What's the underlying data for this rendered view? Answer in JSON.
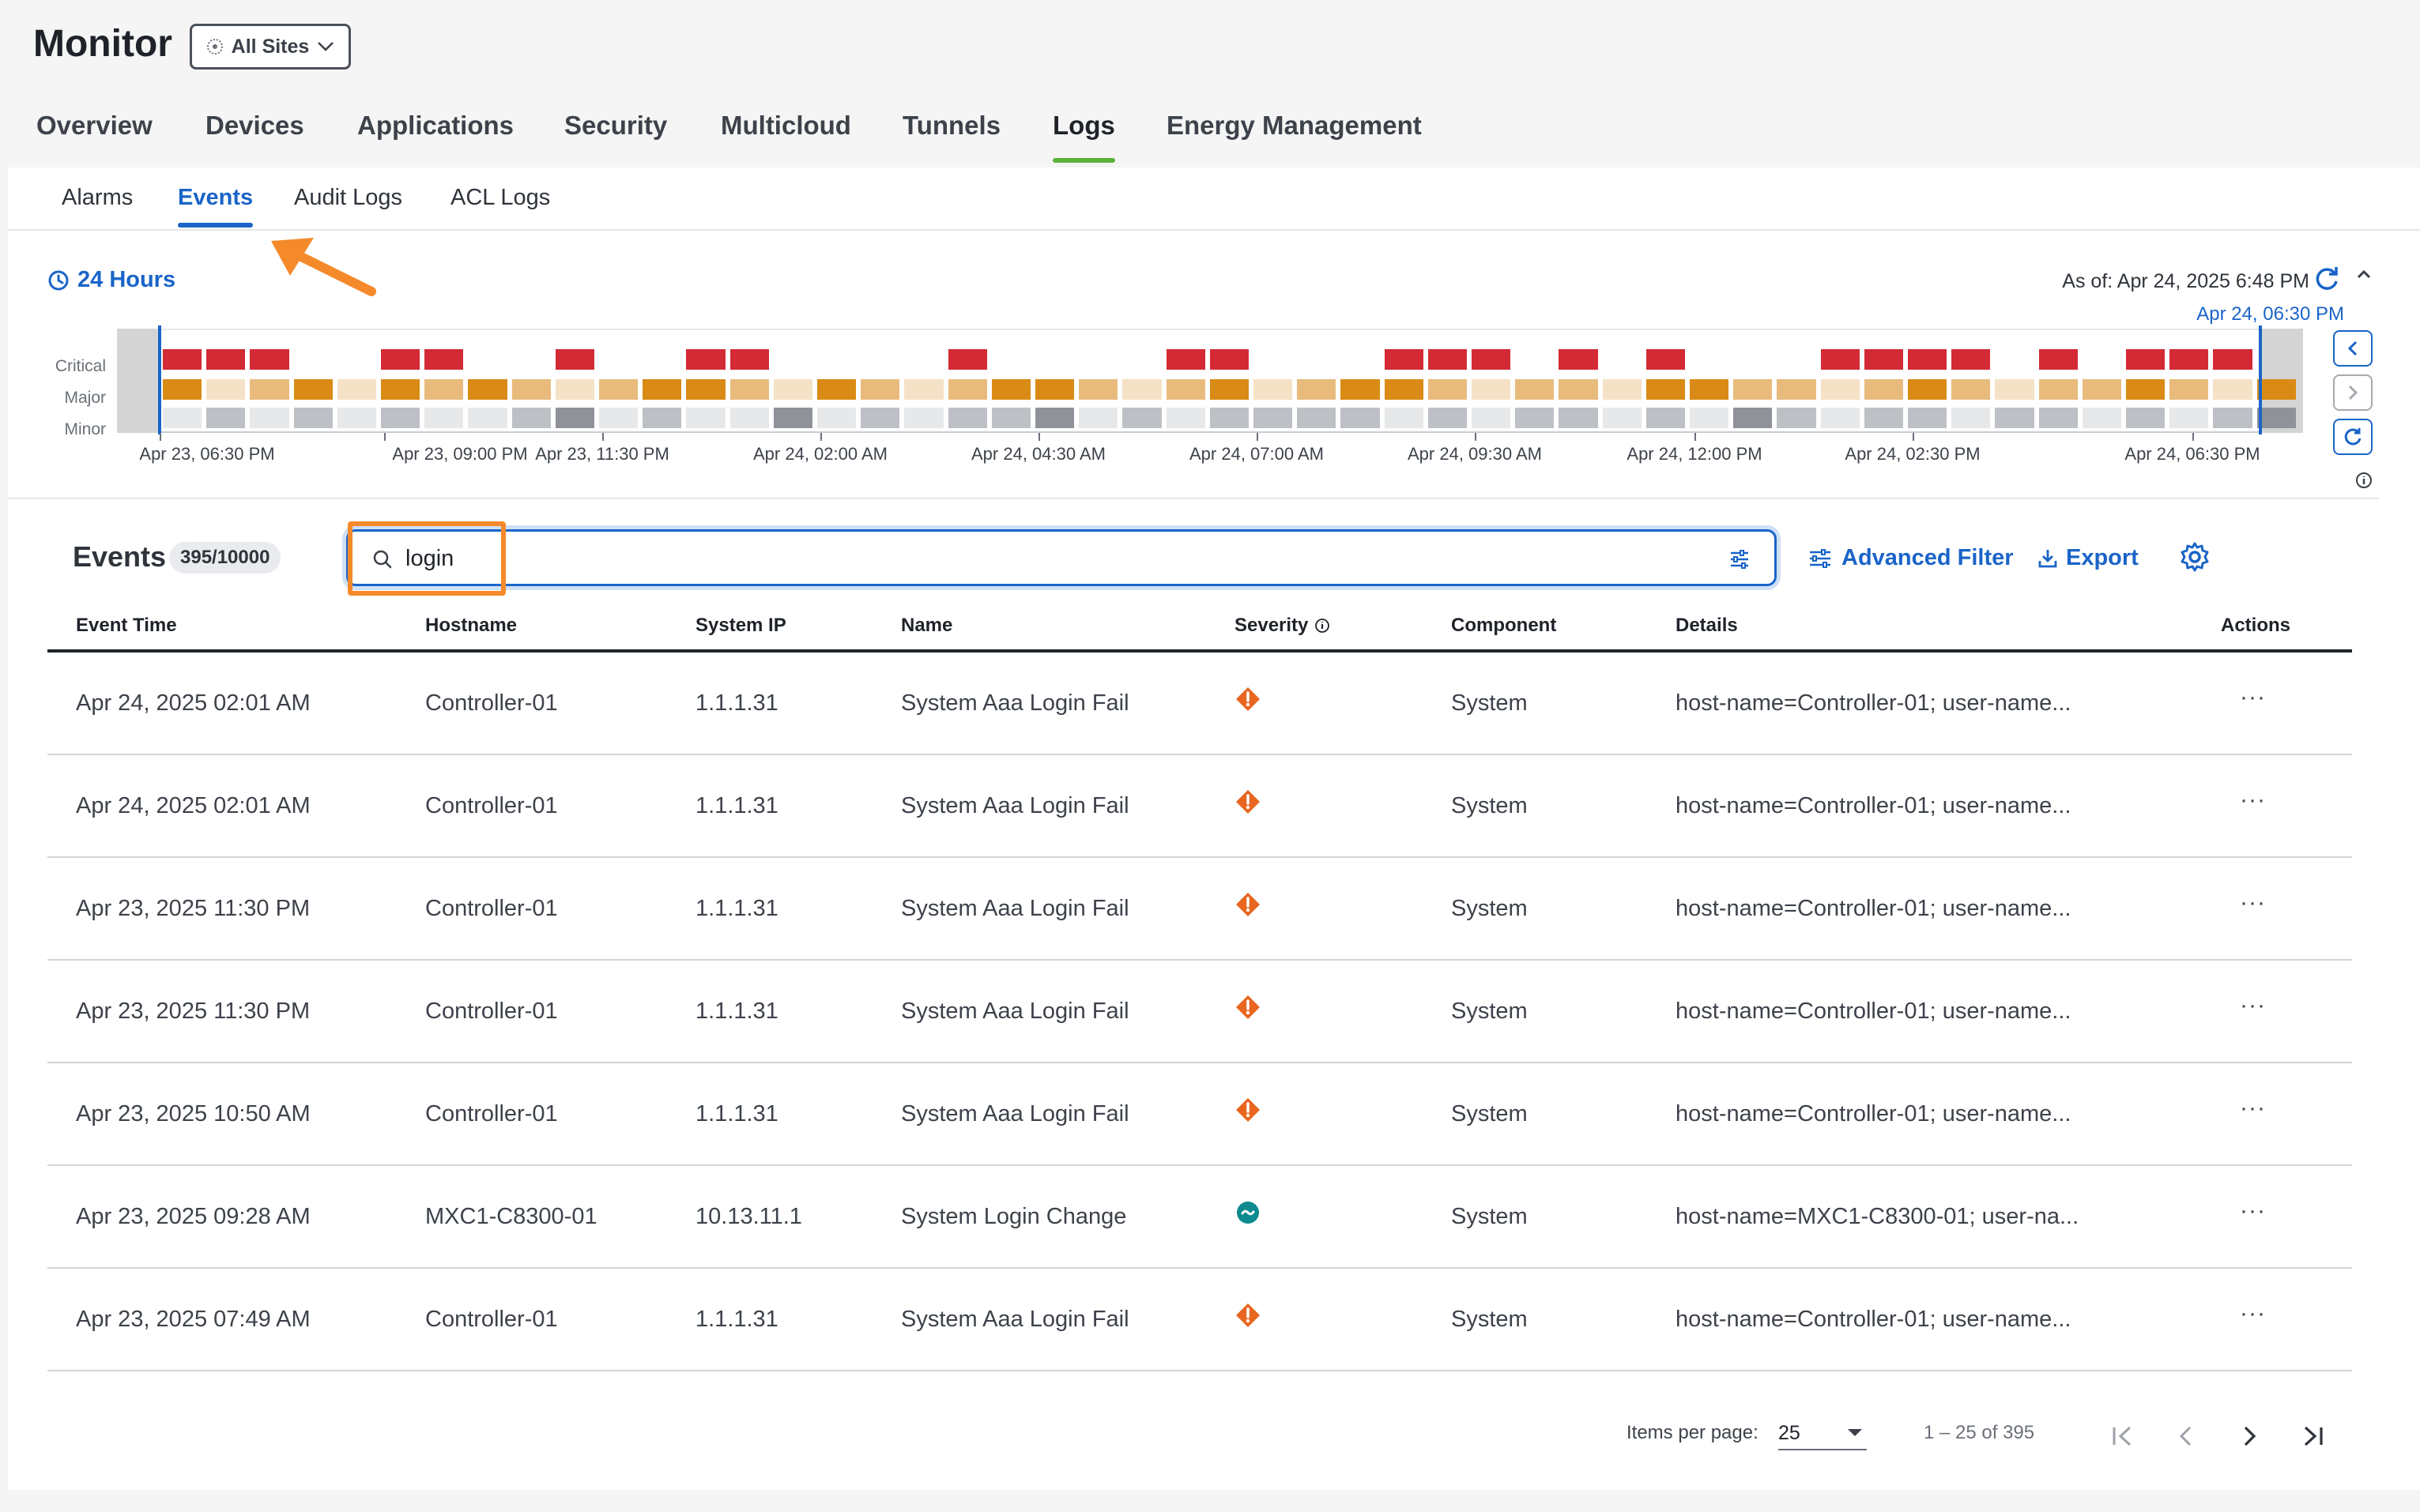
{
  "header": {
    "title": "Monitor",
    "site_selector": "All Sites"
  },
  "main_tabs": [
    {
      "label": "Overview"
    },
    {
      "label": "Devices"
    },
    {
      "label": "Applications"
    },
    {
      "label": "Security"
    },
    {
      "label": "Multicloud"
    },
    {
      "label": "Tunnels"
    },
    {
      "label": "Logs",
      "active": true
    },
    {
      "label": "Energy Management"
    }
  ],
  "sub_tabs": [
    {
      "label": "Alarms"
    },
    {
      "label": "Events",
      "active": true
    },
    {
      "label": "Audit Logs"
    },
    {
      "label": "ACL Logs"
    }
  ],
  "timeline": {
    "range_label": "24 Hours",
    "as_of": "As of: Apr 24, 2025 6:48 PM",
    "selection_end_label": "Apr 24, 06:30 PM",
    "row_labels": [
      "Critical",
      "Major",
      "Minor"
    ],
    "tick_labels": [
      "Apr 23, 06:30 PM",
      "Apr 23, 09:00 PM",
      "Apr 23, 11:30 PM",
      "Apr 24, 02:00 AM",
      "Apr 24, 04:30 AM",
      "Apr 24, 07:00 AM",
      "Apr 24, 09:30 AM",
      "Apr 24, 12:00 PM",
      "Apr 24, 02:30 PM",
      "Apr 24, 06:30 PM"
    ],
    "critical_bins": [
      1,
      1,
      1,
      0,
      0,
      1,
      1,
      0,
      0,
      1,
      0,
      0,
      1,
      1,
      0,
      0,
      0,
      0,
      1,
      0,
      0,
      0,
      0,
      1,
      1,
      0,
      0,
      0,
      1,
      1,
      1,
      0,
      1,
      0,
      1,
      0,
      0,
      0,
      1,
      1,
      1,
      1,
      0,
      1,
      0,
      1,
      1,
      1,
      0
    ],
    "major_levels": [
      3,
      1,
      2,
      3,
      1,
      3,
      2,
      3,
      2,
      1,
      2,
      3,
      3,
      2,
      1,
      3,
      2,
      1,
      2,
      3,
      3,
      2,
      1,
      2,
      3,
      1,
      2,
      3,
      3,
      2,
      1,
      2,
      2,
      1,
      3,
      3,
      2,
      2,
      1,
      2,
      3,
      2,
      1,
      2,
      2,
      3,
      2,
      1,
      3
    ],
    "minor_levels": [
      1,
      2,
      1,
      2,
      1,
      2,
      1,
      1,
      2,
      3,
      1,
      2,
      1,
      1,
      3,
      1,
      2,
      1,
      2,
      2,
      3,
      1,
      2,
      1,
      2,
      2,
      2,
      2,
      1,
      2,
      1,
      2,
      2,
      1,
      2,
      1,
      3,
      2,
      1,
      2,
      2,
      1,
      2,
      2,
      1,
      2,
      1,
      2,
      3
    ],
    "colors": {
      "critical": "#d32a36",
      "major_1": "#f5e2c6",
      "major_2": "#e8bb7d",
      "major_3": "#d98b16",
      "minor_1": "#e7e8ea",
      "minor_2": "#bdc0c5",
      "minor_3": "#8f9399"
    }
  },
  "events": {
    "title": "Events",
    "count": "395/10000",
    "search_value": "login",
    "advanced_filter_label": "Advanced Filter",
    "export_label": "Export",
    "columns": [
      "Event Time",
      "Hostname",
      "System IP",
      "Name",
      "Severity",
      "Component",
      "Details",
      "Actions"
    ],
    "rows": [
      {
        "time": "Apr 24, 2025 02:01 AM",
        "hostname": "Controller-01",
        "ip": "1.1.1.31",
        "name": "System Aaa Login Fail",
        "severity": "major",
        "component": "System",
        "details": "host-name=Controller-01; user-name...",
        "actions": "···"
      },
      {
        "time": "Apr 24, 2025 02:01 AM",
        "hostname": "Controller-01",
        "ip": "1.1.1.31",
        "name": "System Aaa Login Fail",
        "severity": "major",
        "component": "System",
        "details": "host-name=Controller-01; user-name...",
        "actions": "···"
      },
      {
        "time": "Apr 23, 2025 11:30 PM",
        "hostname": "Controller-01",
        "ip": "1.1.1.31",
        "name": "System Aaa Login Fail",
        "severity": "major",
        "component": "System",
        "details": "host-name=Controller-01; user-name...",
        "actions": "···"
      },
      {
        "time": "Apr 23, 2025 11:30 PM",
        "hostname": "Controller-01",
        "ip": "1.1.1.31",
        "name": "System Aaa Login Fail",
        "severity": "major",
        "component": "System",
        "details": "host-name=Controller-01; user-name...",
        "actions": "···"
      },
      {
        "time": "Apr 23, 2025 10:50 AM",
        "hostname": "Controller-01",
        "ip": "1.1.1.31",
        "name": "System Aaa Login Fail",
        "severity": "major",
        "component": "System",
        "details": "host-name=Controller-01; user-name...",
        "actions": "···"
      },
      {
        "time": "Apr 23, 2025 09:28 AM",
        "hostname": "MXC1-C8300-01",
        "ip": "10.13.11.1",
        "name": "System Login Change",
        "severity": "minor",
        "component": "System",
        "details": "host-name=MXC1-C8300-01; user-na...",
        "actions": "···"
      },
      {
        "time": "Apr 23, 2025 07:49 AM",
        "hostname": "Controller-01",
        "ip": "1.1.1.31",
        "name": "System Aaa Login Fail",
        "severity": "major",
        "component": "System",
        "details": "host-name=Controller-01; user-name...",
        "actions": "···"
      }
    ]
  },
  "pagination": {
    "items_per_page_label": "Items per page:",
    "items_per_page": "25",
    "range": "1 – 25 of 395"
  },
  "colors": {
    "accent": "#1a64c8",
    "logs_tab_underline": "#5cb13a",
    "severity_major": "#e8661f",
    "severity_minor": "#0d8a8f",
    "annotation": "#f58a2b"
  }
}
